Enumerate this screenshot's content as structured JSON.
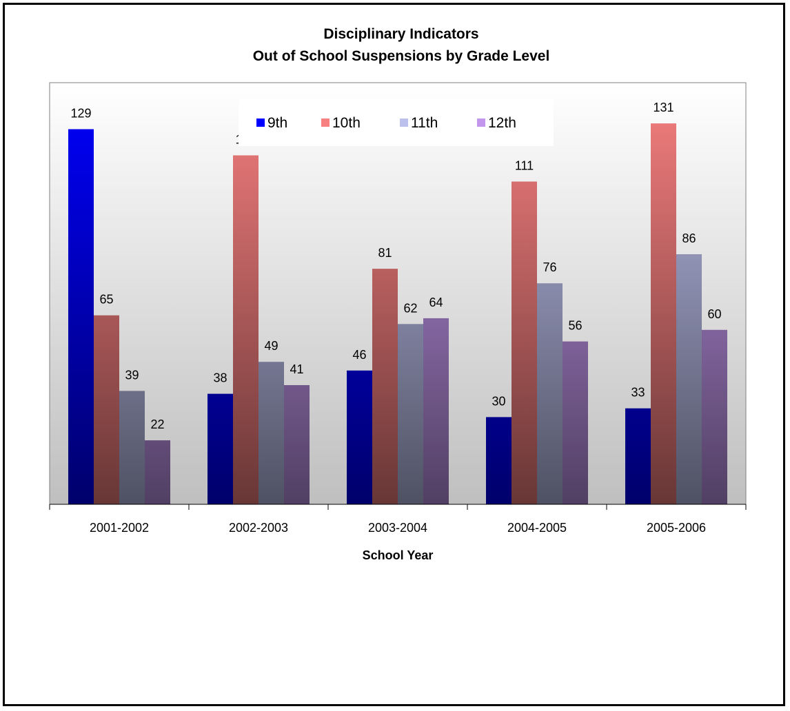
{
  "chart_data": {
    "type": "bar",
    "title": [
      "Disciplinary Indicators",
      "Out of School Suspensions by Grade Level"
    ],
    "xlabel": "School Year",
    "ylabel": "",
    "ylim": [
      0,
      145
    ],
    "grid": false,
    "legend_position": "top-center",
    "categories": [
      "2001-2002",
      "2002-2003",
      "2003-2004",
      "2004-2005",
      "2005-2006"
    ],
    "series": [
      {
        "name": "9th",
        "values": [
          129,
          38,
          46,
          30,
          33
        ],
        "color": "#0000ff"
      },
      {
        "name": "10th",
        "values": [
          65,
          120,
          81,
          111,
          131
        ],
        "color": "#f88080"
      },
      {
        "name": "11th",
        "values": [
          39,
          49,
          62,
          76,
          86
        ],
        "color": "#bcc0ec"
      },
      {
        "name": "12th",
        "values": [
          22,
          41,
          64,
          56,
          60
        ],
        "color": "#c296ec"
      }
    ]
  },
  "colors": {
    "plot_area_top": "#ffffff",
    "plot_area_bottom": "#bfbfbf",
    "frame_border": "#000000"
  }
}
